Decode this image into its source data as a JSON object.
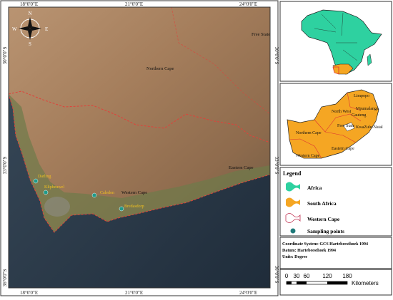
{
  "main_map": {
    "top_labels": [
      "18°0'0\"E",
      "21°0'0\"E",
      "24°0'0\"E"
    ],
    "bottom_labels": [
      "18°0'0\"E",
      "21°0'0\"E",
      "24°0'0\"E"
    ],
    "left_labels": [
      "30°0'0\"S",
      "33°0'0\"S",
      "36°0'0\"S"
    ],
    "right_labels": [
      "30°0'0\"S",
      "33°0'0\"S",
      "36°0'0\"S"
    ],
    "compass": [
      "N",
      "E",
      "S",
      "W"
    ],
    "regions": [
      "Free State",
      "Northern Cape",
      "Eastern Cape",
      "Western Cape"
    ],
    "sites": [
      "Darling",
      "Klipheuwel",
      "Caledon",
      "Bredasdorp"
    ]
  },
  "sa_inset": {
    "provinces": [
      "Limpopo",
      "North West",
      "Mpumalanga",
      "Gauteng",
      "Free State",
      "KwaZulu-Natal",
      "Northern Cape",
      "Eastern Cape",
      "Western Cape"
    ]
  },
  "legend": {
    "title": "Legend",
    "items": [
      "Africa",
      "South Africa",
      "Western Cape",
      "Sampling points"
    ]
  },
  "info": [
    "Coordinate System: GCS Hartebeesthoek 1994",
    "Datum: Hartebeesthoek 1994",
    "Units: Degree"
  ],
  "scale": {
    "ticks": [
      "0",
      "30",
      "60",
      "120",
      "180"
    ],
    "unit": "Kilometers"
  }
}
